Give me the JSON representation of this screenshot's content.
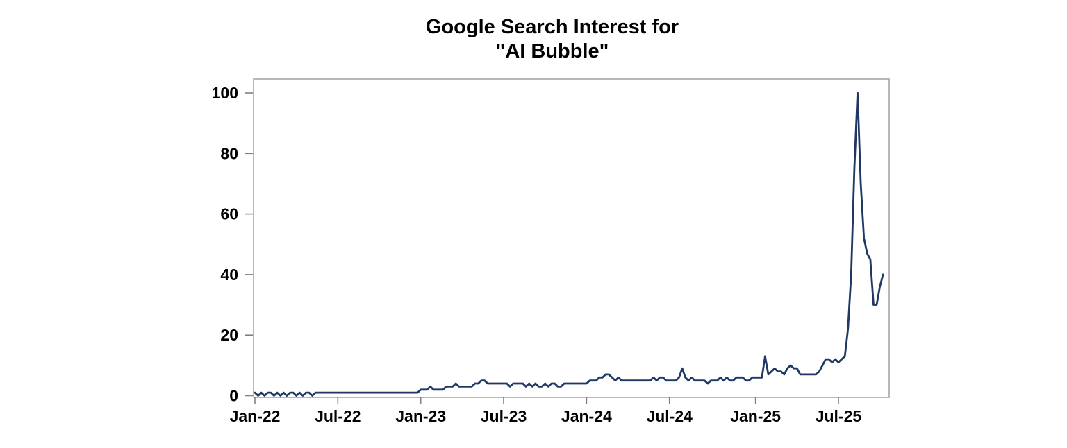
{
  "chart_data": {
    "type": "line",
    "title_line1": "Google Search Interest for",
    "title_line2": "\"AI Bubble\"",
    "x_axis": {
      "tick_labels": [
        "Jan-22",
        "Jul-22",
        "Jan-23",
        "Jul-23",
        "Jan-24",
        "Jul-24",
        "Jan-25",
        "Jul-25"
      ],
      "tick_week_indices": [
        0,
        26,
        52,
        78,
        104,
        130,
        157,
        183
      ],
      "unit": "weekly observations, week index from Jan-22"
    },
    "y_axis": {
      "ticks": [
        0,
        20,
        40,
        60,
        80,
        100
      ],
      "range": [
        0,
        100
      ]
    },
    "series": [
      {
        "name": "search_interest",
        "week_start_index": 0,
        "values": [
          1,
          0,
          1,
          0,
          1,
          1,
          0,
          1,
          0,
          1,
          0,
          1,
          1,
          0,
          1,
          0,
          1,
          1,
          0,
          1,
          1,
          1,
          1,
          1,
          1,
          1,
          1,
          1,
          1,
          1,
          1,
          1,
          1,
          1,
          1,
          1,
          1,
          1,
          1,
          1,
          1,
          1,
          1,
          1,
          1,
          1,
          1,
          1,
          1,
          1,
          1,
          1,
          2,
          2,
          2,
          3,
          2,
          2,
          2,
          2,
          3,
          3,
          3,
          4,
          3,
          3,
          3,
          3,
          3,
          4,
          4,
          5,
          5,
          4,
          4,
          4,
          4,
          4,
          4,
          4,
          3,
          4,
          4,
          4,
          4,
          3,
          4,
          3,
          4,
          3,
          3,
          4,
          3,
          4,
          4,
          3,
          3,
          4,
          4,
          4,
          4,
          4,
          4,
          4,
          4,
          5,
          5,
          5,
          6,
          6,
          7,
          7,
          6,
          5,
          6,
          5,
          5,
          5,
          5,
          5,
          5,
          5,
          5,
          5,
          5,
          6,
          5,
          6,
          6,
          5,
          5,
          5,
          5,
          6,
          9,
          6,
          5,
          6,
          5,
          5,
          5,
          5,
          4,
          5,
          5,
          5,
          6,
          5,
          6,
          5,
          5,
          6,
          6,
          6,
          5,
          5,
          6,
          6,
          6,
          6,
          13,
          7,
          8,
          9,
          8,
          8,
          7,
          9,
          10,
          9,
          9,
          7,
          7,
          7,
          7,
          7,
          7,
          8,
          10,
          12,
          12,
          11,
          12,
          11,
          12,
          13,
          22,
          40,
          75,
          100,
          70,
          52,
          47,
          45,
          30,
          30,
          36,
          40
        ]
      }
    ],
    "legend": "none",
    "grid": false,
    "colors": {
      "line": "#1f3864",
      "plot_border": "#a6a6a6",
      "tick_mark": "#808080",
      "label_text": "#000000",
      "background": "#ffffff"
    }
  }
}
